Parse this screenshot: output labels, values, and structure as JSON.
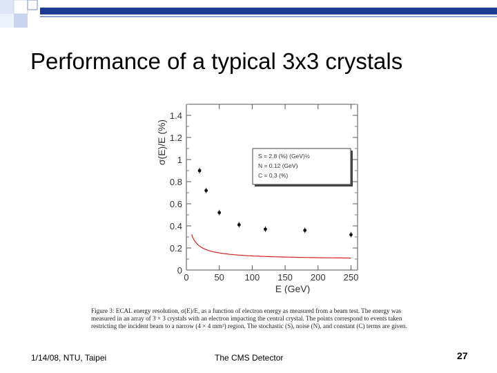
{
  "slide": {
    "title": "Performance of a typical 3x3 crystals",
    "caption": "Figure 3: ECAL energy resolution, σ(E)/E, as a function of electron energy as measured from a beam test. The energy was measured in an array of 3 × 3 crystals with an electron impacting the central crystal. The points correspond to events taken restricting the incident beam to a narrow (4 × 4 mm²) region. The stochastic (S), noise (N), and constant (C) terms are given.",
    "footer_left": "1/14/08, NTU, Taipei",
    "footer_center": "The CMS Detector",
    "page_number": "27",
    "accent_color": "#1f3a93"
  },
  "chart_data": {
    "type": "scatter",
    "xlabel": "E  (GeV)",
    "ylabel": "σ(E)/E  (%)",
    "xlim": [
      0,
      260
    ],
    "ylim": [
      0,
      1.5
    ],
    "x_ticks": [
      0,
      50,
      100,
      150,
      200,
      250
    ],
    "y_ticks": [
      0,
      0.2,
      0.4,
      0.6,
      0.8,
      1,
      1.2,
      1.4
    ],
    "series": [
      {
        "x": [
          20,
          30,
          50,
          80,
          120,
          180,
          250
        ],
        "y": [
          0.9,
          0.72,
          0.52,
          0.41,
          0.37,
          0.36,
          0.32
        ]
      }
    ],
    "fit_color": "#d42020",
    "fit": {
      "S": 2.8,
      "N": 0.12,
      "C": 0.3
    },
    "legend": {
      "placement": "top-right",
      "lines": [
        "S = 2.8 (%) (GeV)½",
        "N = 0.12 (GeV)",
        "C = 0.3 (%)"
      ]
    },
    "grid": false
  }
}
